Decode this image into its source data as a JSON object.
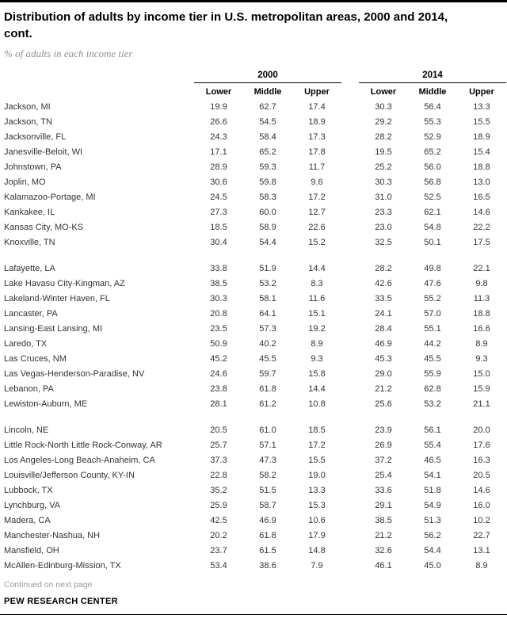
{
  "header": {
    "title_line1": "Distribution of adults by income tier in U.S. metropolitan areas, 2000 and 2014,",
    "title_line2": "cont.",
    "subtitle": "% of adults in each income tier"
  },
  "footer": {
    "continued": "Continued on next page",
    "source": "PEW RESEARCH CENTER"
  },
  "colors": {
    "rule_black": "#000000",
    "body_text": "#333333",
    "muted_gray": "#9a9a9a",
    "subtitle_gray": "#8f8f8f"
  },
  "chart_data": {
    "type": "table",
    "title": "Distribution of adults by income tier in U.S. metropolitan areas, 2000 and 2014, cont.",
    "subtitle": "% of adults in each income tier",
    "column_groups": [
      "2000",
      "2014"
    ],
    "columns": [
      "Lower",
      "Middle",
      "Upper"
    ],
    "row_groups": [
      [
        {
          "metro": "Jackson, MI",
          "v2000": [
            "19.9",
            "62.7",
            "17.4"
          ],
          "v2014": [
            "30.3",
            "56.4",
            "13.3"
          ]
        },
        {
          "metro": "Jackson, TN",
          "v2000": [
            "26.6",
            "54.5",
            "18.9"
          ],
          "v2014": [
            "29.2",
            "55.3",
            "15.5"
          ]
        },
        {
          "metro": "Jacksonville, FL",
          "v2000": [
            "24.3",
            "58.4",
            "17.3"
          ],
          "v2014": [
            "28.2",
            "52.9",
            "18.9"
          ]
        },
        {
          "metro": "Janesville-Beloit, WI",
          "v2000": [
            "17.1",
            "65.2",
            "17.8"
          ],
          "v2014": [
            "19.5",
            "65.2",
            "15.4"
          ]
        },
        {
          "metro": "Johnstown, PA",
          "v2000": [
            "28.9",
            "59.3",
            "11.7"
          ],
          "v2014": [
            "25.2",
            "56.0",
            "18.8"
          ]
        },
        {
          "metro": "Joplin, MO",
          "v2000": [
            "30.6",
            "59.8",
            "9.6"
          ],
          "v2014": [
            "30.3",
            "56.8",
            "13.0"
          ]
        },
        {
          "metro": "Kalamazoo-Portage, MI",
          "v2000": [
            "24.5",
            "58.3",
            "17.2"
          ],
          "v2014": [
            "31.0",
            "52.5",
            "16.5"
          ]
        },
        {
          "metro": "Kankakee, IL",
          "v2000": [
            "27.3",
            "60.0",
            "12.7"
          ],
          "v2014": [
            "23.3",
            "62.1",
            "14.6"
          ]
        },
        {
          "metro": "Kansas City, MO-KS",
          "v2000": [
            "18.5",
            "58.9",
            "22.6"
          ],
          "v2014": [
            "23.0",
            "54.8",
            "22.2"
          ]
        },
        {
          "metro": "Knoxville, TN",
          "v2000": [
            "30.4",
            "54.4",
            "15.2"
          ],
          "v2014": [
            "32.5",
            "50.1",
            "17.5"
          ]
        }
      ],
      [
        {
          "metro": "Lafayette, LA",
          "v2000": [
            "33.8",
            "51.9",
            "14.4"
          ],
          "v2014": [
            "28.2",
            "49.8",
            "22.1"
          ]
        },
        {
          "metro": "Lake Havasu City-Kingman, AZ",
          "v2000": [
            "38.5",
            "53.2",
            "8.3"
          ],
          "v2014": [
            "42.6",
            "47.6",
            "9.8"
          ]
        },
        {
          "metro": "Lakeland-Winter Haven, FL",
          "v2000": [
            "30.3",
            "58.1",
            "11.6"
          ],
          "v2014": [
            "33.5",
            "55.2",
            "11.3"
          ]
        },
        {
          "metro": "Lancaster, PA",
          "v2000": [
            "20.8",
            "64.1",
            "15.1"
          ],
          "v2014": [
            "24.1",
            "57.0",
            "18.8"
          ]
        },
        {
          "metro": "Lansing-East Lansing, MI",
          "v2000": [
            "23.5",
            "57.3",
            "19.2"
          ],
          "v2014": [
            "28.4",
            "55.1",
            "16.6"
          ]
        },
        {
          "metro": "Laredo, TX",
          "v2000": [
            "50.9",
            "40.2",
            "8.9"
          ],
          "v2014": [
            "46.9",
            "44.2",
            "8.9"
          ]
        },
        {
          "metro": "Las Cruces, NM",
          "v2000": [
            "45.2",
            "45.5",
            "9.3"
          ],
          "v2014": [
            "45.3",
            "45.5",
            "9.3"
          ]
        },
        {
          "metro": "Las Vegas-Henderson-Paradise, NV",
          "v2000": [
            "24.6",
            "59.7",
            "15.8"
          ],
          "v2014": [
            "29.0",
            "55.9",
            "15.0"
          ]
        },
        {
          "metro": "Lebanon, PA",
          "v2000": [
            "23.8",
            "61.8",
            "14.4"
          ],
          "v2014": [
            "21.2",
            "62.8",
            "15.9"
          ]
        },
        {
          "metro": "Lewiston-Auburn, ME",
          "v2000": [
            "28.1",
            "61.2",
            "10.8"
          ],
          "v2014": [
            "25.6",
            "53.2",
            "21.1"
          ]
        }
      ],
      [
        {
          "metro": "Lincoln, NE",
          "v2000": [
            "20.5",
            "61.0",
            "18.5"
          ],
          "v2014": [
            "23.9",
            "56.1",
            "20.0"
          ]
        },
        {
          "metro": "Little Rock-North Little Rock-Conway, AR",
          "v2000": [
            "25.7",
            "57.1",
            "17.2"
          ],
          "v2014": [
            "26.9",
            "55.4",
            "17.6"
          ]
        },
        {
          "metro": "Los Angeles-Long Beach-Anaheim, CA",
          "v2000": [
            "37.3",
            "47.3",
            "15.5"
          ],
          "v2014": [
            "37.2",
            "46.5",
            "16.3"
          ]
        },
        {
          "metro": "Louisville/Jefferson County, KY-IN",
          "v2000": [
            "22.8",
            "58.2",
            "19.0"
          ],
          "v2014": [
            "25.4",
            "54.1",
            "20.5"
          ]
        },
        {
          "metro": "Lubbock, TX",
          "v2000": [
            "35.2",
            "51.5",
            "13.3"
          ],
          "v2014": [
            "33.6",
            "51.8",
            "14.6"
          ]
        },
        {
          "metro": "Lynchburg, VA",
          "v2000": [
            "25.9",
            "58.7",
            "15.3"
          ],
          "v2014": [
            "29.1",
            "54.9",
            "16.0"
          ]
        },
        {
          "metro": "Madera, CA",
          "v2000": [
            "42.5",
            "46.9",
            "10.6"
          ],
          "v2014": [
            "38.5",
            "51.3",
            "10.2"
          ]
        },
        {
          "metro": "Manchester-Nashua, NH",
          "v2000": [
            "20.2",
            "61.8",
            "17.9"
          ],
          "v2014": [
            "21.2",
            "56.2",
            "22.7"
          ]
        },
        {
          "metro": "Mansfield, OH",
          "v2000": [
            "23.7",
            "61.5",
            "14.8"
          ],
          "v2014": [
            "32.6",
            "54.4",
            "13.1"
          ]
        },
        {
          "metro": "McAllen-Edinburg-Mission, TX",
          "v2000": [
            "53.4",
            "38.6",
            "7.9"
          ],
          "v2014": [
            "46.1",
            "45.0",
            "8.9"
          ]
        }
      ]
    ]
  }
}
